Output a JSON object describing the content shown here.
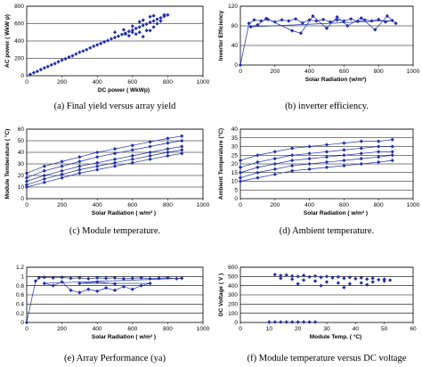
{
  "figure": {
    "colors": {
      "series": "#1f2fa8",
      "grid": "#000000",
      "frame": "#000000"
    }
  },
  "chart_data": [
    {
      "id": "a",
      "type": "scatter",
      "caption": "(a) Final yield versus array yield",
      "xlabel": "DC power ( WkWp)",
      "ylabel": "AC power ( WkW p)",
      "xlim": [
        0,
        1000
      ],
      "ylim": [
        0,
        800
      ],
      "xticks": [
        0,
        200,
        400,
        600,
        800,
        1000
      ],
      "yticks": [
        0,
        200,
        400,
        600,
        800
      ],
      "grid": true,
      "points": [
        [
          20,
          15
        ],
        [
          40,
          35
        ],
        [
          60,
          50
        ],
        [
          80,
          70
        ],
        [
          100,
          90
        ],
        [
          120,
          105
        ],
        [
          140,
          125
        ],
        [
          160,
          140
        ],
        [
          180,
          160
        ],
        [
          200,
          180
        ],
        [
          220,
          195
        ],
        [
          240,
          215
        ],
        [
          260,
          230
        ],
        [
          280,
          250
        ],
        [
          300,
          270
        ],
        [
          320,
          285
        ],
        [
          340,
          300
        ],
        [
          360,
          320
        ],
        [
          380,
          340
        ],
        [
          400,
          355
        ],
        [
          420,
          370
        ],
        [
          440,
          390
        ],
        [
          460,
          405
        ],
        [
          480,
          425
        ],
        [
          500,
          440
        ],
        [
          520,
          455
        ],
        [
          540,
          475
        ],
        [
          560,
          490
        ],
        [
          580,
          510
        ],
        [
          600,
          525
        ],
        [
          620,
          545
        ],
        [
          640,
          560
        ],
        [
          660,
          580
        ],
        [
          680,
          595
        ],
        [
          700,
          615
        ],
        [
          720,
          630
        ],
        [
          740,
          650
        ],
        [
          760,
          665
        ],
        [
          780,
          685
        ],
        [
          800,
          700
        ],
        [
          500,
          500
        ],
        [
          550,
          530
        ],
        [
          600,
          570
        ],
        [
          620,
          480
        ],
        [
          640,
          500
        ],
        [
          660,
          450
        ],
        [
          680,
          520
        ],
        [
          700,
          520
        ],
        [
          720,
          560
        ],
        [
          740,
          600
        ],
        [
          760,
          630
        ],
        [
          780,
          700
        ],
        [
          560,
          480
        ],
        [
          580,
          460
        ],
        [
          600,
          500
        ],
        [
          640,
          620
        ],
        [
          660,
          640
        ],
        [
          700,
          680
        ],
        [
          720,
          690
        ]
      ]
    },
    {
      "id": "b",
      "type": "line",
      "caption": "(b) inverter efficiency.",
      "xlabel": "Solar Radiation (w/m²)",
      "ylabel": "Inverter Efficiency",
      "xlim": [
        0,
        1000
      ],
      "ylim": [
        0,
        120
      ],
      "xticks": [
        0,
        200,
        400,
        600,
        800,
        1000
      ],
      "yticks": [
        0,
        40,
        80,
        120
      ],
      "grid": true,
      "points": [
        [
          0,
          0
        ],
        [
          50,
          85
        ],
        [
          80,
          92
        ],
        [
          120,
          90
        ],
        [
          160,
          93
        ],
        [
          200,
          88
        ],
        [
          240,
          92
        ],
        [
          280,
          90
        ],
        [
          320,
          94
        ],
        [
          360,
          86
        ],
        [
          400,
          92
        ],
        [
          440,
          90
        ],
        [
          480,
          93
        ],
        [
          520,
          88
        ],
        [
          560,
          92
        ],
        [
          600,
          90
        ],
        [
          640,
          94
        ],
        [
          680,
          89
        ],
        [
          720,
          92
        ],
        [
          760,
          90
        ],
        [
          800,
          93
        ],
        [
          840,
          88
        ],
        [
          880,
          91
        ],
        [
          60,
          78
        ],
        [
          100,
          82
        ],
        [
          150,
          95
        ],
        [
          300,
          70
        ],
        [
          350,
          65
        ],
        [
          420,
          100
        ],
        [
          500,
          75
        ],
        [
          560,
          98
        ],
        [
          620,
          80
        ],
        [
          700,
          96
        ],
        [
          780,
          72
        ],
        [
          850,
          100
        ],
        [
          900,
          85
        ]
      ]
    },
    {
      "id": "c",
      "type": "line",
      "caption": "(c) Module temperature.",
      "xlabel": "Solar Radiation ( w/m² )",
      "ylabel": "Module Temberature ( °C)",
      "xlim": [
        0,
        1000
      ],
      "ylim": [
        0,
        60
      ],
      "xticks": [
        0,
        200,
        400,
        600,
        800,
        1000
      ],
      "yticks": [
        0,
        10,
        20,
        30,
        40,
        50,
        60
      ],
      "grid": true,
      "series": [
        {
          "values": [
            [
              0,
              22
            ],
            [
              100,
              28
            ],
            [
              200,
              32
            ],
            [
              300,
              36
            ],
            [
              400,
              40
            ],
            [
              500,
              43
            ],
            [
              600,
              46
            ],
            [
              700,
              49
            ],
            [
              800,
              52
            ],
            [
              880,
              54
            ]
          ]
        },
        {
          "values": [
            [
              0,
              18
            ],
            [
              100,
              24
            ],
            [
              200,
              28
            ],
            [
              300,
              32
            ],
            [
              400,
              36
            ],
            [
              500,
              39
            ],
            [
              600,
              42
            ],
            [
              700,
              45
            ],
            [
              800,
              48
            ],
            [
              880,
              50
            ]
          ]
        },
        {
          "values": [
            [
              0,
              15
            ],
            [
              100,
              20
            ],
            [
              200,
              24
            ],
            [
              300,
              28
            ],
            [
              400,
              31
            ],
            [
              500,
              34
            ],
            [
              600,
              37
            ],
            [
              700,
              40
            ],
            [
              800,
              43
            ],
            [
              880,
              45
            ]
          ]
        },
        {
          "values": [
            [
              0,
              12
            ],
            [
              100,
              17
            ],
            [
              200,
              21
            ],
            [
              300,
              25
            ],
            [
              400,
              28
            ],
            [
              500,
              31
            ],
            [
              600,
              34
            ],
            [
              700,
              37
            ],
            [
              800,
              40
            ],
            [
              880,
              42
            ]
          ]
        },
        {
          "values": [
            [
              0,
              10
            ],
            [
              100,
              14
            ],
            [
              200,
              18
            ],
            [
              300,
              22
            ],
            [
              400,
              25
            ],
            [
              500,
              28
            ],
            [
              600,
              31
            ],
            [
              700,
              34
            ],
            [
              800,
              37
            ],
            [
              880,
              39
            ]
          ]
        }
      ]
    },
    {
      "id": "d",
      "type": "line",
      "caption": "(d) Ambient temperature.",
      "xlabel": "Solar Radiation ( w/m² )",
      "ylabel": "Ambient Temperature (°C)",
      "xlim": [
        0,
        1000
      ],
      "ylim": [
        0,
        40
      ],
      "xticks": [
        0,
        200,
        400,
        600,
        800,
        1000
      ],
      "yticks": [
        0,
        5,
        10,
        15,
        20,
        25,
        30,
        35,
        40
      ],
      "grid": true,
      "series": [
        {
          "values": [
            [
              0,
              22
            ],
            [
              100,
              25
            ],
            [
              200,
              27
            ],
            [
              300,
              29
            ],
            [
              400,
              30
            ],
            [
              500,
              31
            ],
            [
              600,
              32
            ],
            [
              700,
              33
            ],
            [
              800,
              33
            ],
            [
              880,
              34
            ]
          ]
        },
        {
          "values": [
            [
              0,
              18
            ],
            [
              100,
              21
            ],
            [
              200,
              23
            ],
            [
              300,
              25
            ],
            [
              400,
              26
            ],
            [
              500,
              27
            ],
            [
              600,
              28
            ],
            [
              700,
              29
            ],
            [
              800,
              30
            ],
            [
              880,
              30
            ]
          ]
        },
        {
          "values": [
            [
              0,
              15
            ],
            [
              100,
              18
            ],
            [
              200,
              20
            ],
            [
              300,
              22
            ],
            [
              400,
              23
            ],
            [
              500,
              24
            ],
            [
              600,
              25
            ],
            [
              700,
              26
            ],
            [
              800,
              27
            ],
            [
              880,
              27
            ]
          ]
        },
        {
          "values": [
            [
              0,
              12
            ],
            [
              100,
              15
            ],
            [
              200,
              17
            ],
            [
              300,
              19
            ],
            [
              400,
              20
            ],
            [
              500,
              21
            ],
            [
              600,
              22
            ],
            [
              700,
              23
            ],
            [
              800,
              24
            ],
            [
              880,
              25
            ]
          ]
        },
        {
          "values": [
            [
              0,
              10
            ],
            [
              100,
              12
            ],
            [
              200,
              14
            ],
            [
              300,
              16
            ],
            [
              400,
              17
            ],
            [
              500,
              18
            ],
            [
              600,
              19
            ],
            [
              700,
              20
            ],
            [
              800,
              21
            ],
            [
              880,
              22
            ]
          ]
        }
      ]
    },
    {
      "id": "e",
      "type": "line",
      "caption": "(e) Array Performance (ya)",
      "xlabel": "Solar Radiation ( w/m² )",
      "ylabel": "",
      "xlim": [
        0,
        1000
      ],
      "ylim": [
        0,
        1.2
      ],
      "xticks": [
        0,
        200,
        400,
        600,
        800,
        1000
      ],
      "yticks": [
        0,
        0.2,
        0.4,
        0.6,
        0.8,
        1,
        1.2
      ],
      "grid": true,
      "points": [
        [
          0,
          0
        ],
        [
          50,
          0.9
        ],
        [
          70,
          0.97
        ],
        [
          100,
          0.98
        ],
        [
          150,
          0.97
        ],
        [
          200,
          0.98
        ],
        [
          250,
          0.96
        ],
        [
          300,
          0.97
        ],
        [
          350,
          0.95
        ],
        [
          400,
          0.97
        ],
        [
          450,
          0.96
        ],
        [
          500,
          0.97
        ],
        [
          550,
          0.95
        ],
        [
          600,
          0.96
        ],
        [
          650,
          0.97
        ],
        [
          700,
          0.95
        ],
        [
          750,
          0.96
        ],
        [
          800,
          0.97
        ],
        [
          850,
          0.95
        ],
        [
          880,
          0.96
        ],
        [
          100,
          0.85
        ],
        [
          150,
          0.8
        ],
        [
          200,
          0.88
        ],
        [
          250,
          0.7
        ],
        [
          300,
          0.65
        ],
        [
          350,
          0.72
        ],
        [
          400,
          0.68
        ],
        [
          450,
          0.75
        ],
        [
          500,
          0.7
        ],
        [
          550,
          0.78
        ],
        [
          600,
          0.72
        ],
        [
          650,
          0.8
        ],
        [
          700,
          0.85
        ],
        [
          300,
          0.85
        ],
        [
          400,
          0.88
        ],
        [
          500,
          0.84
        ]
      ]
    },
    {
      "id": "f",
      "type": "scatter",
      "caption": "(f) Module temperature versus DC voltage",
      "xlabel": "Module Temp. ( °C)",
      "ylabel": "DC Voltage ( V )",
      "xlim": [
        0,
        60
      ],
      "ylim": [
        0,
        600
      ],
      "xticks": [
        0,
        10,
        20,
        30,
        40,
        50,
        60
      ],
      "yticks": [
        0,
        100,
        200,
        300,
        400,
        500,
        600
      ],
      "grid": true,
      "points": [
        [
          12,
          520
        ],
        [
          14,
          510
        ],
        [
          16,
          515
        ],
        [
          18,
          505
        ],
        [
          20,
          500
        ],
        [
          22,
          510
        ],
        [
          24,
          495
        ],
        [
          26,
          505
        ],
        [
          28,
          490
        ],
        [
          30,
          500
        ],
        [
          32,
          485
        ],
        [
          34,
          495
        ],
        [
          36,
          480
        ],
        [
          38,
          490
        ],
        [
          40,
          475
        ],
        [
          42,
          485
        ],
        [
          44,
          470
        ],
        [
          46,
          480
        ],
        [
          48,
          465
        ],
        [
          50,
          470
        ],
        [
          52,
          460
        ],
        [
          14,
          480
        ],
        [
          18,
          470
        ],
        [
          22,
          460
        ],
        [
          26,
          450
        ],
        [
          30,
          440
        ],
        [
          34,
          430
        ],
        [
          38,
          420
        ],
        [
          42,
          430
        ],
        [
          46,
          440
        ],
        [
          50,
          450
        ],
        [
          20,
          420
        ],
        [
          28,
          400
        ],
        [
          36,
          380
        ],
        [
          44,
          410
        ],
        [
          10,
          5
        ],
        [
          12,
          5
        ],
        [
          14,
          5
        ],
        [
          16,
          5
        ],
        [
          18,
          5
        ],
        [
          20,
          5
        ],
        [
          22,
          5
        ],
        [
          24,
          5
        ],
        [
          26,
          5
        ]
      ]
    }
  ]
}
